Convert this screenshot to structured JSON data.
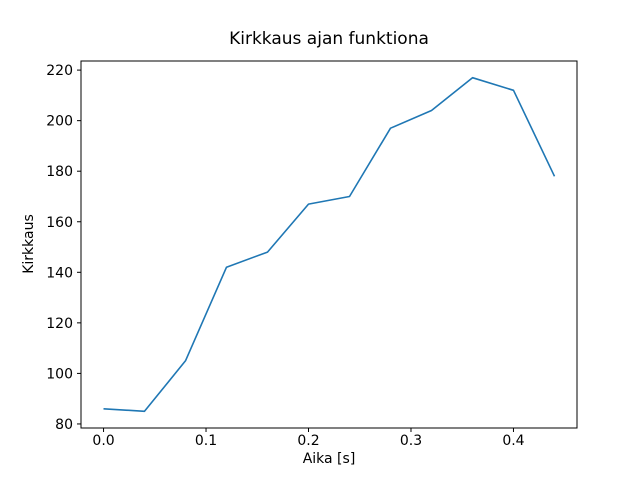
{
  "chart_data": {
    "type": "line",
    "title": "Kirkkaus ajan funktiona",
    "xlabel": "Aika [s]",
    "ylabel": "Kirkkaus",
    "x": [
      0.0,
      0.04,
      0.08,
      0.12,
      0.16,
      0.2,
      0.24,
      0.28,
      0.32,
      0.36,
      0.4,
      0.44
    ],
    "values": [
      86,
      85,
      105,
      142,
      148,
      167,
      170,
      197,
      204,
      217,
      212,
      178
    ],
    "series_name": "Kirkkaus",
    "xlim": [
      -0.022,
      0.462
    ],
    "ylim": [
      78.4,
      223.6
    ],
    "xticks": [
      0.0,
      0.1,
      0.2,
      0.3,
      0.4
    ],
    "xtick_labels": [
      "0.0",
      "0.1",
      "0.2",
      "0.3",
      "0.4"
    ],
    "yticks": [
      80,
      100,
      120,
      140,
      160,
      180,
      200,
      220
    ],
    "ytick_labels": [
      "80",
      "100",
      "120",
      "140",
      "160",
      "180",
      "200",
      "220"
    ],
    "line_color": "#1f77b4",
    "axis_color": "#000000",
    "background_color": "#ffffff",
    "grid": false,
    "legend": null,
    "markers": false
  }
}
